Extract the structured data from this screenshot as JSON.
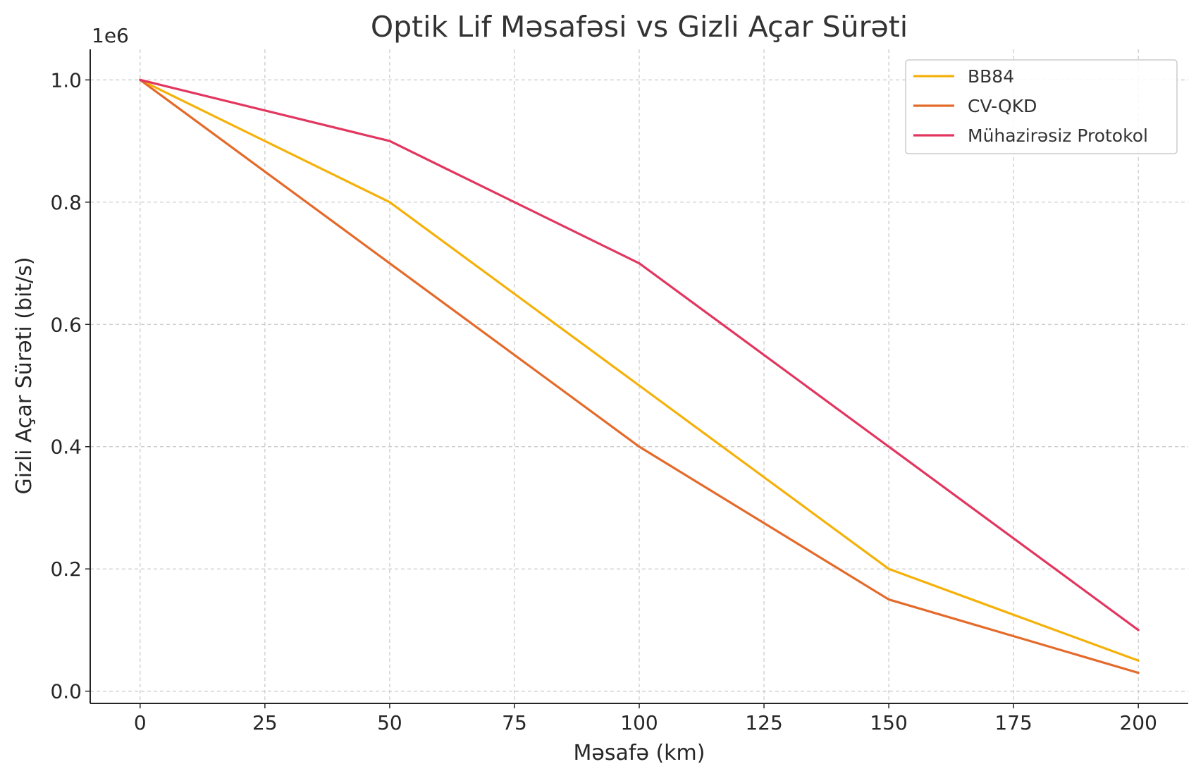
{
  "chart_data": {
    "type": "line",
    "title": "Optik Lif Məsafəsi vs Gizli Açar Sürəti",
    "xlabel": "Məsafə (km)",
    "ylabel": "Gizli Açar Sürəti (bit/s)",
    "y_offset_label": "1e6",
    "x": [
      0,
      50,
      100,
      150,
      200
    ],
    "xlim": [
      -10,
      210
    ],
    "ylim": [
      -20000,
      1050000
    ],
    "x_ticks": [
      0,
      25,
      50,
      75,
      100,
      125,
      150,
      175,
      200
    ],
    "x_tick_labels": [
      "0",
      "25",
      "50",
      "75",
      "100",
      "125",
      "150",
      "175",
      "200"
    ],
    "y_ticks": [
      0,
      200000,
      400000,
      600000,
      800000,
      1000000
    ],
    "y_tick_labels": [
      "0.0",
      "0.2",
      "0.4",
      "0.6",
      "0.8",
      "1.0"
    ],
    "grid": true,
    "legend_position": "top-right",
    "series": [
      {
        "name": "BB84",
        "color": "#f5b10a",
        "values": [
          1000000,
          800000,
          500000,
          200000,
          50000
        ]
      },
      {
        "name": "CV-QKD",
        "color": "#e46a2a",
        "values": [
          1000000,
          700000,
          400000,
          150000,
          30000
        ]
      },
      {
        "name": "Mühazirəsiz Protokol",
        "color": "#e2365f",
        "values": [
          1000000,
          900000,
          700000,
          400000,
          100000
        ]
      }
    ]
  }
}
